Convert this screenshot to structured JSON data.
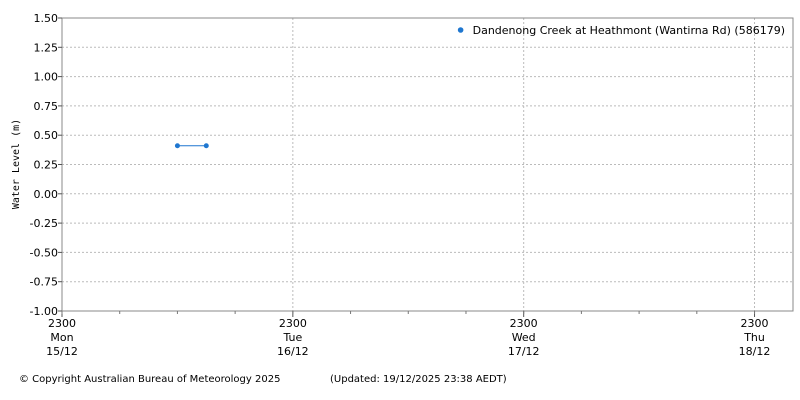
{
  "chart_data": {
    "type": "line",
    "ylabel": "Water Level (m)",
    "ylim": [
      -1.0,
      1.5
    ],
    "yticks": [
      "1.50",
      "1.25",
      "1.00",
      "0.75",
      "0.50",
      "0.25",
      "0.00",
      "-0.25",
      "-0.50",
      "-0.75",
      "-1.00"
    ],
    "xlim": [
      "2025-12-15T23:00",
      "2025-12-19T03:00"
    ],
    "xticks": [
      {
        "time": "2025-12-15T23:00",
        "lines": [
          "2300",
          "Mon",
          "15/12"
        ]
      },
      {
        "time": "2025-12-16T23:00",
        "lines": [
          "2300",
          "Tue",
          "16/12"
        ]
      },
      {
        "time": "2025-12-17T23:00",
        "lines": [
          "2300",
          "Wed",
          "17/12"
        ]
      },
      {
        "time": "2025-12-18T23:00",
        "lines": [
          "2300",
          "Thu",
          "18/12"
        ]
      }
    ],
    "grid": true,
    "legend_position": "top-right",
    "series": [
      {
        "name": "Dandenong Creek at Heathmont (Wantirna Rd) (586179)",
        "color": "#1f77d0",
        "points": [
          {
            "x": "2025-12-16T11:00",
            "y": 0.41
          },
          {
            "x": "2025-12-16T14:00",
            "y": 0.41
          }
        ]
      }
    ]
  },
  "footer": {
    "copyright": "© Copyright Australian Bureau of Meteorology 2025",
    "updated": "(Updated: 19/12/2025 23:38 AEDT)"
  }
}
